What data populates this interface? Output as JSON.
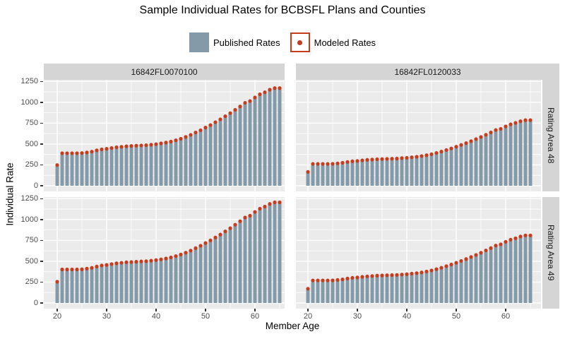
{
  "title": "Sample Individual Rates for BCBSFL Plans and Counties",
  "legend": {
    "published_label": "Published Rates",
    "modeled_label": "Modeled Rates"
  },
  "axes": {
    "x_label": "Member Age",
    "y_label": "Individual Rate",
    "x_ticks": [
      20,
      30,
      40,
      50,
      60
    ],
    "y_ticks": [
      0,
      250,
      500,
      750,
      1000,
      1250
    ]
  },
  "facets": {
    "columns": [
      "16842FL0070100",
      "16842FL0120033"
    ],
    "rows": [
      "Rating Area 48",
      "Rating Area 49"
    ]
  },
  "colors": {
    "bar": "#849AA8",
    "dot": "#C63C1E",
    "panel_bg": "#EBEBEB",
    "strip_bg": "#D5D5D5",
    "grid": "#FFFFFF",
    "tick_text": "#4D4D4D"
  },
  "chart_data": {
    "type": "bar",
    "title": "Sample Individual Rates for BCBSFL Plans and Counties",
    "xlabel": "Member Age",
    "ylabel": "Individual Rate",
    "ylim": [
      0,
      1250
    ],
    "x_tick_labels": [
      20,
      30,
      40,
      50,
      60
    ],
    "y_tick_labels": [
      0,
      250,
      500,
      750,
      1000,
      1250
    ],
    "legend_position": "top",
    "grid": "white major and minor gridlines on gray panels",
    "facet_layout": "2x2 grid; columns = plan ID, rows = rating area",
    "ages": [
      20,
      21,
      22,
      23,
      24,
      25,
      26,
      27,
      28,
      29,
      30,
      31,
      32,
      33,
      34,
      35,
      36,
      37,
      38,
      39,
      40,
      41,
      42,
      43,
      44,
      45,
      46,
      47,
      48,
      49,
      50,
      51,
      52,
      53,
      54,
      55,
      56,
      57,
      58,
      59,
      60,
      61,
      62,
      63,
      64,
      65
    ],
    "panels": [
      {
        "plan": "16842FL0070100",
        "rating_area": "Rating Area 48",
        "series": [
          {
            "name": "Published Rates",
            "values": [
              248,
              390,
              390,
              390,
              390,
              392,
              399,
              409,
              424,
              436,
              443,
              452,
              461,
              467,
              473,
              477,
              480,
              483,
              486,
              492,
              498,
              508,
              517,
              529,
              545,
              563,
              585,
              610,
              638,
              665,
              697,
              727,
              761,
              796,
              833,
              870,
              910,
              950,
              994,
              1015,
              1058,
              1096,
              1120,
              1151,
              1170,
              1170
            ]
          },
          {
            "name": "Modeled Rates",
            "values": [
              248,
              390,
              390,
              390,
              390,
              392,
              399,
              409,
              424,
              436,
              443,
              452,
              461,
              467,
              473,
              477,
              480,
              483,
              486,
              492,
              498,
              508,
              517,
              529,
              545,
              563,
              585,
              610,
              638,
              665,
              697,
              727,
              761,
              796,
              833,
              870,
              910,
              950,
              994,
              1015,
              1058,
              1096,
              1120,
              1151,
              1170,
              1170
            ]
          }
        ]
      },
      {
        "plan": "16842FL0120033",
        "rating_area": "Rating Area 48",
        "series": [
          {
            "name": "Published Rates",
            "values": [
              166,
              262,
              262,
              262,
              262,
              263,
              268,
              275,
              285,
              293,
              297,
              304,
              310,
              314,
              318,
              320,
              322,
              324,
              326,
              331,
              335,
              341,
              347,
              356,
              366,
              378,
              393,
              410,
              428,
              447,
              468,
              489,
              511,
              534,
              559,
              584,
              611,
              639,
              668,
              682,
              711,
              736,
              753,
              773,
              786,
              786
            ]
          },
          {
            "name": "Modeled Rates",
            "values": [
              166,
              262,
              262,
              262,
              262,
              263,
              268,
              275,
              285,
              293,
              297,
              304,
              310,
              314,
              318,
              320,
              322,
              324,
              326,
              331,
              335,
              341,
              347,
              356,
              366,
              378,
              393,
              410,
              428,
              447,
              468,
              489,
              511,
              534,
              559,
              584,
              611,
              639,
              668,
              682,
              711,
              736,
              753,
              773,
              786,
              786
            ]
          }
        ]
      },
      {
        "plan": "16842FL0070100",
        "rating_area": "Rating Area 49",
        "series": [
          {
            "name": "Published Rates",
            "values": [
              255,
              402,
              402,
              402,
              402,
              404,
              412,
              421,
              437,
              450,
              456,
              466,
              476,
              482,
              488,
              491,
              494,
              498,
              501,
              507,
              514,
              523,
              533,
              546,
              562,
              581,
              603,
              628,
              657,
              686,
              718,
              750,
              785,
              820,
              858,
              896,
              938,
              980,
              1024,
              1046,
              1091,
              1130,
              1155,
              1187,
              1206,
              1206
            ]
          },
          {
            "name": "Modeled Rates",
            "values": [
              255,
              402,
              402,
              402,
              402,
              404,
              412,
              421,
              437,
              450,
              456,
              466,
              476,
              482,
              488,
              491,
              494,
              498,
              501,
              507,
              514,
              523,
              533,
              546,
              562,
              581,
              603,
              628,
              657,
              686,
              718,
              750,
              785,
              820,
              858,
              896,
              938,
              980,
              1024,
              1046,
              1091,
              1130,
              1155,
              1187,
              1206,
              1206
            ]
          }
        ]
      },
      {
        "plan": "16842FL0120033",
        "rating_area": "Rating Area 49",
        "series": [
          {
            "name": "Published Rates",
            "values": [
              171,
              270,
              270,
              270,
              270,
              271,
              276,
              283,
              293,
              302,
              306,
              313,
              319,
              323,
              328,
              330,
              332,
              334,
              336,
              341,
              345,
              352,
              358,
              366,
              377,
              390,
              405,
              422,
              441,
              461,
              482,
              504,
              527,
              551,
              576,
              602,
              630,
              658,
              688,
              703,
              733,
              759,
              776,
              797,
              810,
              810
            ]
          },
          {
            "name": "Modeled Rates",
            "values": [
              171,
              270,
              270,
              270,
              270,
              271,
              276,
              283,
              293,
              302,
              306,
              313,
              319,
              323,
              328,
              330,
              332,
              334,
              336,
              341,
              345,
              352,
              358,
              366,
              377,
              390,
              405,
              422,
              441,
              461,
              482,
              504,
              527,
              551,
              576,
              602,
              630,
              658,
              688,
              703,
              733,
              759,
              776,
              797,
              810,
              810
            ]
          }
        ]
      }
    ]
  }
}
